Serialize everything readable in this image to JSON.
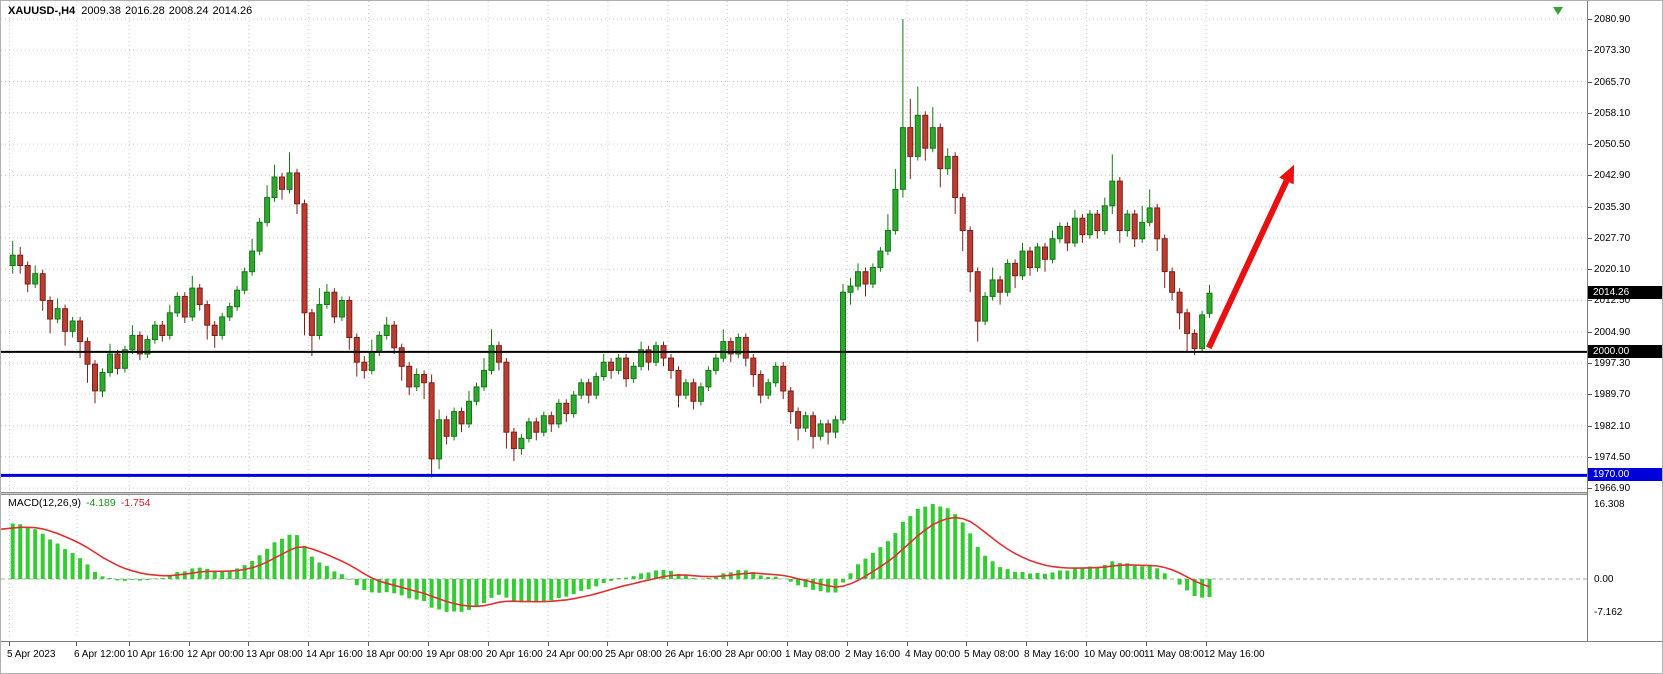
{
  "header": {
    "symbol_timeframe": "XAUUSD-,H4",
    "open": "2009.38",
    "high": "2016.28",
    "low": "2008.24",
    "close": "2014.26"
  },
  "price_axis": {
    "current_price": "2014.26",
    "black_line_price": "2000.00",
    "blue_line_price": "1970.00"
  },
  "macd": {
    "label": "MACD(12,26,9)",
    "main_value": "-4.189",
    "signal_value": "-1.754",
    "scale_labels": [
      {
        "text": "16.308",
        "value": 16.308
      },
      {
        "text": "0.00",
        "value": 0
      },
      {
        "text": "-7.162",
        "value": -7.162
      }
    ]
  },
  "colors": {
    "up_fill": "#2FA82F",
    "up_stroke": "#157815",
    "down_fill": "#BA3D32",
    "down_stroke": "#7E201A",
    "macd_hist": "#33CC33",
    "macd_signal": "#E03030",
    "grid": "#C9C9C9",
    "arrow": "#E81010",
    "black_line": "#000000",
    "blue_line": "#0000DC"
  },
  "chart_data": {
    "type": "candlestick",
    "symbol": "XAUUSD",
    "timeframe": "H4",
    "ylim": [
      1963.0,
      2085.0
    ],
    "price_axis_labels": [
      "2080.90",
      "2073.30",
      "2065.70",
      "2058.10",
      "2050.50",
      "2042.90",
      "2035.30",
      "2027.70",
      "2020.10",
      "2012.50",
      "2004.90",
      "1997.30",
      "1989.70",
      "1982.10",
      "1974.50",
      "1966.90"
    ],
    "time_labels": [
      {
        "text": "5 Apr 2023",
        "bar": 0
      },
      {
        "text": "6 Apr 12:00",
        "bar": 9
      },
      {
        "text": "10 Apr 16:00",
        "bar": 16
      },
      {
        "text": "12 Apr 00:00",
        "bar": 24
      },
      {
        "text": "13 Apr 08:00",
        "bar": 32
      },
      {
        "text": "14 Apr 16:00",
        "bar": 40
      },
      {
        "text": "18 Apr 00:00",
        "bar": 48
      },
      {
        "text": "19 Apr 08:00",
        "bar": 56
      },
      {
        "text": "20 Apr 16:00",
        "bar": 64
      },
      {
        "text": "24 Apr 00:00",
        "bar": 72
      },
      {
        "text": "25 Apr 08:00",
        "bar": 80
      },
      {
        "text": "26 Apr 16:00",
        "bar": 88
      },
      {
        "text": "28 Apr 00:00",
        "bar": 96
      },
      {
        "text": "1 May 08:00",
        "bar": 104
      },
      {
        "text": "2 May 16:00",
        "bar": 112
      },
      {
        "text": "4 May 00:00",
        "bar": 120
      },
      {
        "text": "5 May 08:00",
        "bar": 128
      },
      {
        "text": "8 May 16:00",
        "bar": 136
      },
      {
        "text": "10 May 00:00",
        "bar": 144
      },
      {
        "text": "11 May 08:00",
        "bar": 152
      },
      {
        "text": "12 May 16:00",
        "bar": 160
      }
    ],
    "candles": [
      [
        2021.0,
        2027.0,
        2019.0,
        2023.5
      ],
      [
        2023.5,
        2025.5,
        2019.0,
        2021.0
      ],
      [
        2021.0,
        2022.0,
        2014.5,
        2016.5
      ],
      [
        2016.5,
        2021.0,
        2015.5,
        2019.0
      ],
      [
        2019.0,
        2020.0,
        2010.0,
        2012.5
      ],
      [
        2012.5,
        2013.5,
        2004.5,
        2008.0
      ],
      [
        2008.0,
        2013.0,
        2007.0,
        2010.5
      ],
      [
        2010.5,
        2011.5,
        2001.5,
        2005.0
      ],
      [
        2005.0,
        2008.5,
        2003.5,
        2007.5
      ],
      [
        2007.5,
        2008.5,
        1998.5,
        2002.5
      ],
      [
        2002.5,
        2003.5,
        1992.5,
        1997.0
      ],
      [
        1997.0,
        1998.0,
        1987.5,
        1990.5
      ],
      [
        1990.5,
        1996.0,
        1989.0,
        1995.0
      ],
      [
        1995.0,
        2002.0,
        1994.0,
        1999.5
      ],
      [
        1999.5,
        2000.5,
        1994.5,
        1996.0
      ],
      [
        1996.0,
        2001.5,
        1995.0,
        2000.5
      ],
      [
        2000.5,
        2006.5,
        1999.5,
        2004.0
      ],
      [
        2004.0,
        2005.0,
        1998.0,
        1999.5
      ],
      [
        1999.5,
        2004.0,
        1998.5,
        2003.0
      ],
      [
        2003.0,
        2007.5,
        2002.0,
        2006.5
      ],
      [
        2006.5,
        2007.5,
        2002.5,
        2004.0
      ],
      [
        2004.0,
        2011.5,
        2003.0,
        2009.5
      ],
      [
        2009.5,
        2014.5,
        2008.5,
        2013.5
      ],
      [
        2013.5,
        2014.5,
        2007.0,
        2008.5
      ],
      [
        2008.5,
        2018.5,
        2007.5,
        2015.5
      ],
      [
        2015.5,
        2016.5,
        2010.0,
        2011.5
      ],
      [
        2011.5,
        2012.5,
        2003.0,
        2006.5
      ],
      [
        2006.5,
        2007.5,
        2001.0,
        2004.0
      ],
      [
        2004.0,
        2009.5,
        2003.0,
        2008.5
      ],
      [
        2008.5,
        2012.0,
        2007.5,
        2011.0
      ],
      [
        2011.0,
        2016.0,
        2010.0,
        2015.0
      ],
      [
        2015.0,
        2020.5,
        2014.0,
        2019.5
      ],
      [
        2019.5,
        2027.5,
        2018.5,
        2024.5
      ],
      [
        2024.5,
        2032.5,
        2023.5,
        2031.5
      ],
      [
        2031.5,
        2040.5,
        2030.5,
        2037.5
      ],
      [
        2037.5,
        2045.5,
        2036.5,
        2042.5
      ],
      [
        2042.5,
        2043.5,
        2037.0,
        2039.5
      ],
      [
        2039.5,
        2048.5,
        2038.5,
        2043.5
      ],
      [
        2043.5,
        2044.5,
        2033.5,
        2036.0
      ],
      [
        2036.0,
        2037.0,
        2004.0,
        2009.5
      ],
      [
        2009.5,
        2010.5,
        1999.0,
        2004.0
      ],
      [
        2004.0,
        2015.5,
        2003.0,
        2011.5
      ],
      [
        2011.5,
        2016.5,
        2010.5,
        2014.5
      ],
      [
        2014.5,
        2015.5,
        2007.0,
        2008.5
      ],
      [
        2008.5,
        2013.5,
        2007.5,
        2012.5
      ],
      [
        2012.5,
        2013.5,
        2000.5,
        2003.5
      ],
      [
        2003.5,
        2004.5,
        1994.0,
        1997.5
      ],
      [
        1997.5,
        1999.0,
        1993.5,
        1995.5
      ],
      [
        1995.5,
        2003.0,
        1994.5,
        2000.0
      ],
      [
        2000.0,
        2005.0,
        1999.0,
        2004.0
      ],
      [
        2004.0,
        2008.5,
        2003.0,
        2006.5
      ],
      [
        2006.5,
        2007.5,
        1999.5,
        2001.0
      ],
      [
        2001.0,
        2002.0,
        1993.0,
        1996.5
      ],
      [
        1996.5,
        1997.5,
        1989.5,
        1991.5
      ],
      [
        1991.5,
        1996.0,
        1990.5,
        1994.5
      ],
      [
        1994.5,
        1995.5,
        1988.5,
        1992.5
      ],
      [
        1992.5,
        1994.5,
        1969.5,
        1974.0
      ],
      [
        1974.0,
        1986.0,
        1971.5,
        1983.5
      ],
      [
        1983.5,
        1984.5,
        1977.5,
        1979.5
      ],
      [
        1979.5,
        1986.5,
        1978.5,
        1985.5
      ],
      [
        1985.5,
        1986.5,
        1980.5,
        1982.5
      ],
      [
        1982.5,
        1990.5,
        1981.5,
        1988.0
      ],
      [
        1988.0,
        1992.5,
        1987.0,
        1991.5
      ],
      [
        1991.5,
        1998.5,
        1990.5,
        1995.5
      ],
      [
        1995.5,
        2005.5,
        1994.5,
        2001.5
      ],
      [
        2001.5,
        2002.5,
        1995.5,
        1997.5
      ],
      [
        1997.5,
        1998.5,
        1976.5,
        1980.5
      ],
      [
        1980.5,
        1981.5,
        1973.5,
        1976.5
      ],
      [
        1976.5,
        1980.0,
        1975.0,
        1979.0
      ],
      [
        1979.0,
        1984.0,
        1978.0,
        1983.0
      ],
      [
        1983.0,
        1984.0,
        1978.5,
        1980.5
      ],
      [
        1980.5,
        1985.5,
        1979.5,
        1984.5
      ],
      [
        1984.5,
        1985.5,
        1980.5,
        1982.5
      ],
      [
        1982.5,
        1988.5,
        1981.5,
        1987.5
      ],
      [
        1987.5,
        1988.5,
        1983.0,
        1985.0
      ],
      [
        1985.0,
        1990.5,
        1984.0,
        1989.5
      ],
      [
        1989.5,
        1993.5,
        1988.5,
        1992.5
      ],
      [
        1992.5,
        1993.5,
        1987.5,
        1989.5
      ],
      [
        1989.5,
        1995.0,
        1988.5,
        1994.0
      ],
      [
        1994.0,
        1999.5,
        1993.0,
        1997.5
      ],
      [
        1997.5,
        1998.5,
        1993.5,
        1995.5
      ],
      [
        1995.5,
        1999.5,
        1994.5,
        1998.5
      ],
      [
        1998.5,
        1999.5,
        1991.5,
        1993.5
      ],
      [
        1993.5,
        1997.5,
        1992.5,
        1996.5
      ],
      [
        1996.5,
        2002.5,
        1995.5,
        2000.5
      ],
      [
        2000.5,
        2001.5,
        1995.5,
        1997.5
      ],
      [
        1997.5,
        2002.5,
        1996.5,
        2001.5
      ],
      [
        2001.5,
        2002.5,
        1996.5,
        1998.5
      ],
      [
        1998.5,
        1999.5,
        1993.5,
        1995.5
      ],
      [
        1995.5,
        1996.5,
        1986.5,
        1989.5
      ],
      [
        1989.5,
        1993.5,
        1988.5,
        1992.5
      ],
      [
        1992.5,
        1993.5,
        1986.0,
        1988.0
      ],
      [
        1988.0,
        1992.5,
        1987.0,
        1991.5
      ],
      [
        1991.5,
        1996.5,
        1990.5,
        1995.5
      ],
      [
        1995.5,
        1999.5,
        1994.5,
        1998.5
      ],
      [
        1998.5,
        2005.5,
        1997.5,
        2002.5
      ],
      [
        2002.5,
        2003.5,
        1997.5,
        1999.5
      ],
      [
        1999.5,
        2004.5,
        1998.5,
        2003.5
      ],
      [
        2003.5,
        2004.5,
        1996.5,
        1998.5
      ],
      [
        1998.5,
        1999.5,
        1991.5,
        1994.5
      ],
      [
        1994.5,
        1995.5,
        1987.5,
        1989.5
      ],
      [
        1989.5,
        1993.5,
        1988.5,
        1992.5
      ],
      [
        1992.5,
        1997.5,
        1991.5,
        1996.5
      ],
      [
        1996.5,
        1997.5,
        1988.5,
        1990.5
      ],
      [
        1990.5,
        1991.5,
        1982.5,
        1985.5
      ],
      [
        1985.5,
        1986.5,
        1978.5,
        1981.5
      ],
      [
        1981.5,
        1985.5,
        1980.5,
        1984.5
      ],
      [
        1984.5,
        1985.5,
        1976.5,
        1979.5
      ],
      [
        1979.5,
        1983.5,
        1978.5,
        1982.5
      ],
      [
        1982.5,
        1983.5,
        1977.5,
        1980.5
      ],
      [
        1980.5,
        1984.5,
        1979.0,
        1983.5
      ],
      [
        1983.5,
        2016.5,
        1982.5,
        2014.5
      ],
      [
        2014.5,
        2018.0,
        2011.5,
        2016.0
      ],
      [
        2016.0,
        2021.5,
        2015.0,
        2019.5
      ],
      [
        2019.5,
        2020.5,
        2013.5,
        2016.5
      ],
      [
        2016.5,
        2021.5,
        2015.5,
        2020.5
      ],
      [
        2020.5,
        2025.5,
        2019.5,
        2024.5
      ],
      [
        2024.5,
        2033.5,
        2023.5,
        2029.5
      ],
      [
        2029.5,
        2044.5,
        2028.5,
        2039.5
      ],
      [
        2039.5,
        2080.9,
        2037.5,
        2054.5
      ],
      [
        2054.5,
        2061.5,
        2042.0,
        2047.5
      ],
      [
        2047.5,
        2064.5,
        2046.5,
        2057.5
      ],
      [
        2057.5,
        2058.5,
        2046.5,
        2049.5
      ],
      [
        2049.5,
        2059.5,
        2048.5,
        2054.5
      ],
      [
        2054.5,
        2055.5,
        2040.0,
        2044.5
      ],
      [
        2044.5,
        2049.5,
        2043.0,
        2047.5
      ],
      [
        2047.5,
        2048.5,
        2033.5,
        2037.5
      ],
      [
        2037.5,
        2038.5,
        2024.5,
        2029.5
      ],
      [
        2029.5,
        2030.5,
        2014.5,
        2019.5
      ],
      [
        2019.5,
        2020.5,
        2002.5,
        2007.5
      ],
      [
        2007.5,
        2014.5,
        2006.5,
        2013.5
      ],
      [
        2013.5,
        2020.5,
        2012.5,
        2017.5
      ],
      [
        2017.5,
        2018.5,
        2011.5,
        2014.5
      ],
      [
        2014.5,
        2022.5,
        2013.5,
        2021.5
      ],
      [
        2021.5,
        2022.5,
        2015.5,
        2018.5
      ],
      [
        2018.5,
        2026.5,
        2017.5,
        2024.5
      ],
      [
        2024.5,
        2025.5,
        2018.5,
        2020.5
      ],
      [
        2020.5,
        2026.5,
        2019.5,
        2025.5
      ],
      [
        2025.5,
        2026.5,
        2019.5,
        2022.5
      ],
      [
        2022.5,
        2029.5,
        2021.5,
        2027.5
      ],
      [
        2027.5,
        2031.5,
        2026.5,
        2030.5
      ],
      [
        2030.5,
        2031.5,
        2024.5,
        2026.5
      ],
      [
        2026.5,
        2034.5,
        2025.5,
        2032.5
      ],
      [
        2032.5,
        2033.5,
        2026.5,
        2028.5
      ],
      [
        2028.5,
        2034.5,
        2027.5,
        2033.5
      ],
      [
        2033.5,
        2034.5,
        2027.5,
        2029.5
      ],
      [
        2029.5,
        2037.5,
        2028.5,
        2035.5
      ],
      [
        2035.5,
        2048.0,
        2033.5,
        2041.5
      ],
      [
        2041.5,
        2042.5,
        2026.5,
        2029.5
      ],
      [
        2029.5,
        2034.5,
        2028.0,
        2033.5
      ],
      [
        2033.5,
        2034.5,
        2025.5,
        2027.5
      ],
      [
        2027.5,
        2035.5,
        2026.5,
        2031.5
      ],
      [
        2031.5,
        2039.5,
        2030.5,
        2035.0
      ],
      [
        2035.0,
        2036.0,
        2024.5,
        2027.5
      ],
      [
        2027.5,
        2028.5,
        2015.5,
        2019.5
      ],
      [
        2019.5,
        2020.5,
        2012.5,
        2014.5
      ],
      [
        2014.5,
        2015.5,
        2005.5,
        2009.5
      ],
      [
        2009.5,
        2010.5,
        2000.0,
        2004.5
      ],
      [
        2004.5,
        2005.5,
        1999.2,
        2000.8
      ],
      [
        2000.8,
        2010.0,
        2000.2,
        2009.0
      ],
      [
        2009.38,
        2016.28,
        2008.24,
        2014.26
      ]
    ],
    "horizontal_lines": [
      {
        "price": 2000.0,
        "color": "#000000",
        "width": 2,
        "label": "2000.00"
      },
      {
        "price": 1970.0,
        "color": "#0000DC",
        "width": 3,
        "label": "1970.00"
      }
    ],
    "current_price": 2014.26,
    "arrow_annotation": {
      "from_bar": 160.4,
      "from_price": 2001.0,
      "to_bar": 171.8,
      "to_price": 2045.5
    },
    "macd": {
      "fast": 12,
      "slow": 26,
      "signal_period": 9,
      "scale_max": 16.308,
      "scale_min": -7.162
    }
  }
}
